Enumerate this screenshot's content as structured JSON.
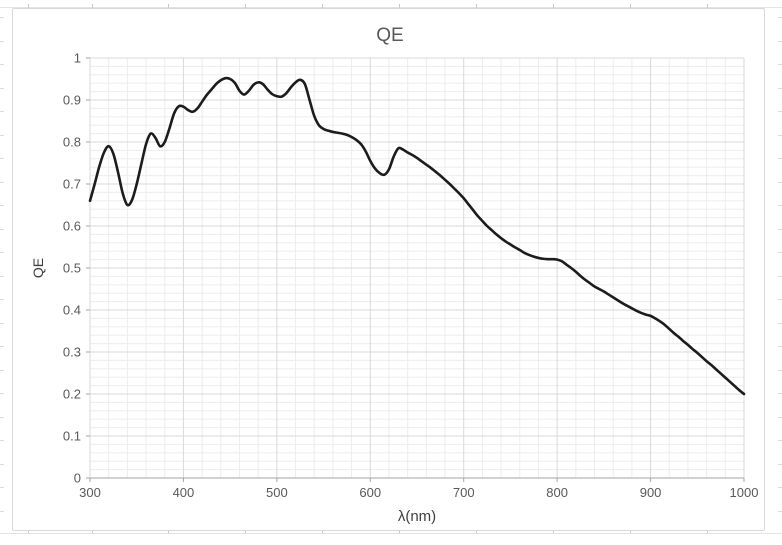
{
  "chart_data": {
    "type": "line",
    "title": "QE",
    "xlabel": "λ(nm)",
    "ylabel": "QE",
    "xlim": [
      300,
      1000
    ],
    "ylim": [
      0,
      1
    ],
    "x_major_step": 100,
    "x_minor_step": 20,
    "y_major_step": 0.1,
    "y_minor_step": 0.02,
    "x_ticks": [
      "300",
      "400",
      "500",
      "600",
      "700",
      "800",
      "900",
      "1000"
    ],
    "y_ticks": [
      "0",
      "0.1",
      "0.2",
      "0.3",
      "0.4",
      "0.5",
      "0.6",
      "0.7",
      "0.8",
      "0.9",
      "1"
    ],
    "grid": "major-and-minor",
    "legend_position": "none",
    "series": [
      {
        "name": "QE",
        "x_start": 300,
        "x_step": 5,
        "y": [
          0.66,
          0.7,
          0.742,
          0.775,
          0.79,
          0.772,
          0.728,
          0.678,
          0.65,
          0.662,
          0.7,
          0.748,
          0.795,
          0.82,
          0.81,
          0.79,
          0.8,
          0.832,
          0.868,
          0.885,
          0.884,
          0.876,
          0.872,
          0.88,
          0.896,
          0.912,
          0.925,
          0.938,
          0.947,
          0.952,
          0.95,
          0.941,
          0.922,
          0.913,
          0.922,
          0.936,
          0.942,
          0.938,
          0.925,
          0.914,
          0.909,
          0.908,
          0.916,
          0.93,
          0.942,
          0.948,
          0.938,
          0.9,
          0.862,
          0.84,
          0.831,
          0.827,
          0.824,
          0.822,
          0.82,
          0.817,
          0.812,
          0.805,
          0.795,
          0.778,
          0.755,
          0.737,
          0.726,
          0.722,
          0.735,
          0.765,
          0.785,
          0.782,
          0.775,
          0.769,
          0.762,
          0.754,
          0.746,
          0.738,
          0.729,
          0.72,
          0.71,
          0.7,
          0.689,
          0.678,
          0.666,
          0.652,
          0.638,
          0.624,
          0.612,
          0.6,
          0.59,
          0.58,
          0.571,
          0.563,
          0.556,
          0.549,
          0.543,
          0.536,
          0.531,
          0.527,
          0.524,
          0.522,
          0.521,
          0.521,
          0.52,
          0.516,
          0.508,
          0.5,
          0.491,
          0.481,
          0.472,
          0.464,
          0.456,
          0.45,
          0.444,
          0.437,
          0.43,
          0.423,
          0.416,
          0.41,
          0.404,
          0.398,
          0.393,
          0.389,
          0.386,
          0.38,
          0.373,
          0.365,
          0.355,
          0.345,
          0.336,
          0.326,
          0.317,
          0.307,
          0.298,
          0.288,
          0.278,
          0.269,
          0.259,
          0.249,
          0.239,
          0.229,
          0.219,
          0.209,
          0.2
        ]
      }
    ],
    "style": {
      "line_color": "#1c1c1c",
      "line_width": 2.6,
      "major_grid_color": "#d9d9d9",
      "minor_grid_color": "#ededed",
      "axis_color": "#a6a6a6",
      "tick_label_color": "#595959",
      "title_color": "#595959",
      "axis_title_color": "#404040",
      "chart_border_color": "#d9d9d9",
      "background": "#ffffff"
    }
  }
}
